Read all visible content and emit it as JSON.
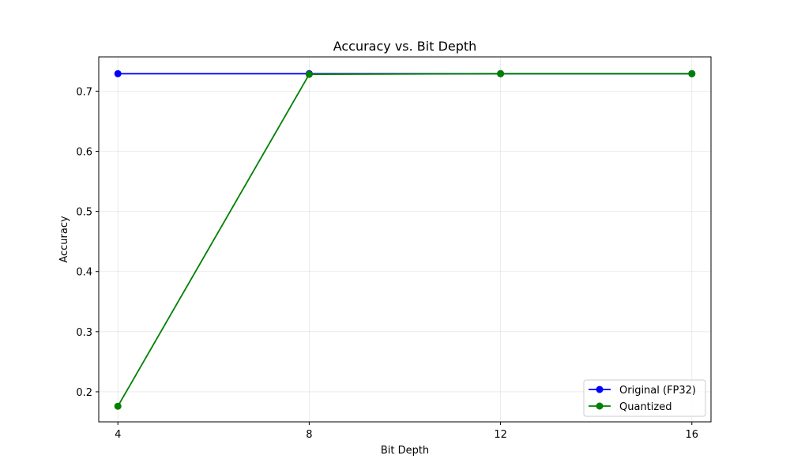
{
  "chart_data": {
    "type": "line",
    "title": "Accuracy vs. Bit Depth",
    "xlabel": "Bit Depth",
    "ylabel": "Accuracy",
    "x": [
      4,
      8,
      12,
      16
    ],
    "xticks": [
      4,
      8,
      12,
      16
    ],
    "xlim": [
      3.6,
      16.4
    ],
    "yticks": [
      0.2,
      0.3,
      0.4,
      0.5,
      0.6,
      0.7
    ],
    "ylim": [
      0.15,
      0.757
    ],
    "grid": true,
    "legend_position": "lower-right",
    "series": [
      {
        "name": "Original (FP32)",
        "values": [
          0.729,
          0.729,
          0.729,
          0.729
        ],
        "color": "#0000ff",
        "marker": "circle"
      },
      {
        "name": "Quantized",
        "values": [
          0.176,
          0.728,
          0.729,
          0.729
        ],
        "color": "#008000",
        "marker": "circle"
      }
    ]
  }
}
